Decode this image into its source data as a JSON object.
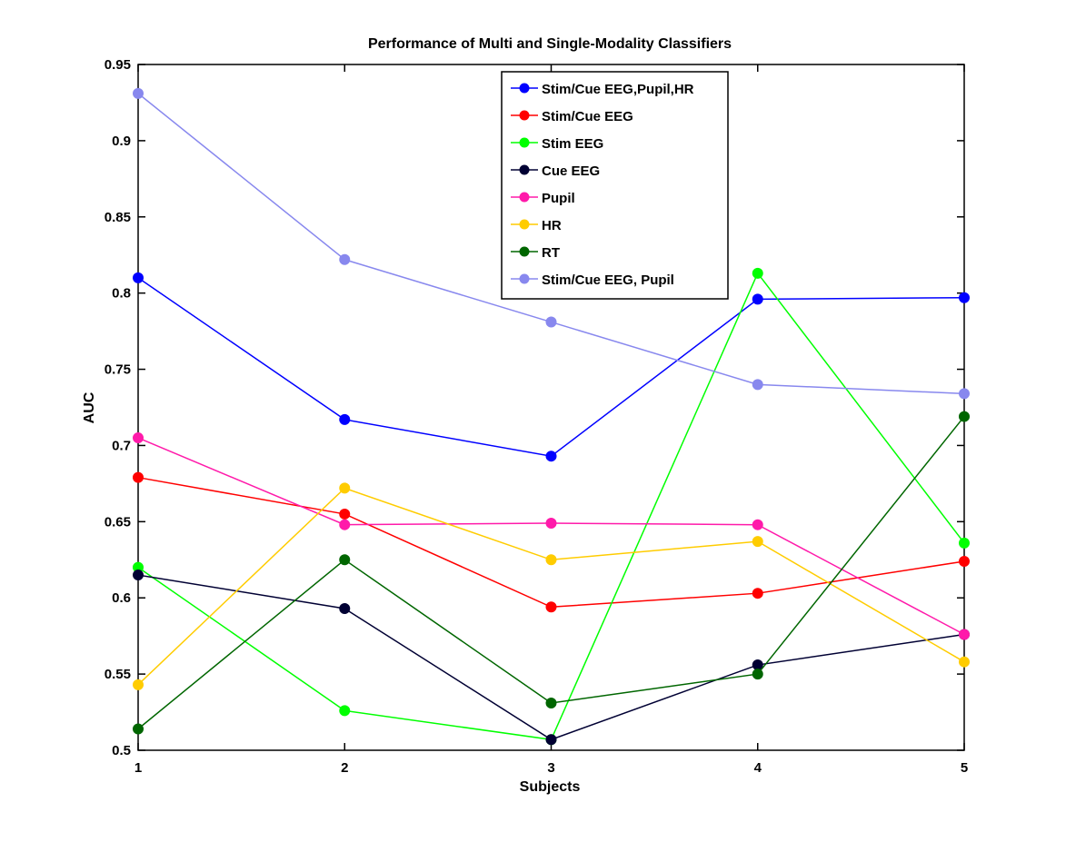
{
  "chart_data": {
    "type": "line",
    "title": "Performance of Multi and Single-Modality Classifiers",
    "xlabel": "Subjects",
    "ylabel": "AUC",
    "x": [
      1,
      2,
      3,
      4,
      5
    ],
    "xlim": [
      1,
      5
    ],
    "ylim": [
      0.5,
      0.95
    ],
    "xticks": [
      "1",
      "2",
      "3",
      "4",
      "5"
    ],
    "yticks": [
      "0.5",
      "0.55",
      "0.6",
      "0.65",
      "0.7",
      "0.75",
      "0.8",
      "0.85",
      "0.9",
      "0.95"
    ],
    "grid": false,
    "legend_position": "top-center",
    "series": [
      {
        "name": "Stim/Cue EEG,Pupil,HR",
        "color": "#0000ff",
        "values": [
          0.81,
          0.717,
          0.693,
          0.796,
          0.797
        ]
      },
      {
        "name": "Stim/Cue EEG",
        "color": "#ff0000",
        "values": [
          0.679,
          0.655,
          0.594,
          0.603,
          0.624
        ]
      },
      {
        "name": "Stim EEG",
        "color": "#00ff00",
        "values": [
          0.62,
          0.526,
          0.507,
          0.813,
          0.636
        ]
      },
      {
        "name": "Cue EEG",
        "color": "#000033",
        "values": [
          0.615,
          0.593,
          0.507,
          0.556,
          0.576
        ]
      },
      {
        "name": "Pupil",
        "color": "#ff1aaa",
        "values": [
          0.705,
          0.648,
          0.649,
          0.648,
          0.576
        ]
      },
      {
        "name": "HR",
        "color": "#ffcc00",
        "values": [
          0.543,
          0.672,
          0.625,
          0.637,
          0.558
        ]
      },
      {
        "name": "RT",
        "color": "#006600",
        "values": [
          0.514,
          0.625,
          0.531,
          0.55,
          0.719
        ]
      },
      {
        "name": "Stim/Cue EEG, Pupil",
        "color": "#8888ee",
        "values": [
          0.931,
          0.822,
          0.781,
          0.74,
          0.734
        ]
      }
    ]
  }
}
